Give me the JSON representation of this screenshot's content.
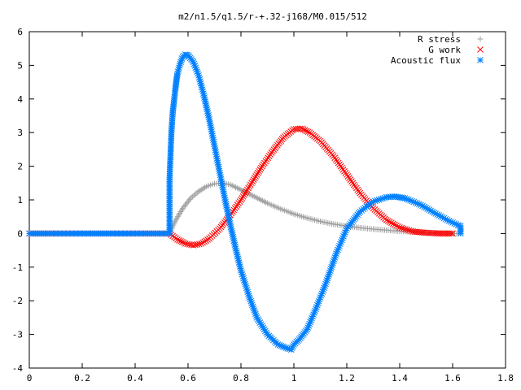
{
  "chart_data": {
    "type": "scatter",
    "title": "m2/n1.5/q1.5/r-+.32-j168/M0.015/512",
    "xlabel": "",
    "ylabel": "",
    "xlim": [
      0,
      1.8
    ],
    "ylim": [
      -4,
      6
    ],
    "x_ticks": [
      "0",
      "0.2",
      "0.4",
      "0.6",
      "0.8",
      "1",
      "1.2",
      "1.4",
      "1.6",
      "1.8"
    ],
    "y_ticks": [
      "-4",
      "-3",
      "-2",
      "-1",
      "0",
      "1",
      "2",
      "3",
      "4",
      "5",
      "6"
    ],
    "grid": false,
    "legend_position": "top-right",
    "series": [
      {
        "name": "R stress",
        "marker": "plus",
        "color": "#a0a0a0",
        "points": [
          [
            0.0,
            0
          ],
          [
            0.1,
            0
          ],
          [
            0.2,
            0
          ],
          [
            0.3,
            0
          ],
          [
            0.4,
            0
          ],
          [
            0.5,
            0
          ],
          [
            0.53,
            0
          ],
          [
            0.55,
            0.35
          ],
          [
            0.58,
            0.75
          ],
          [
            0.61,
            1.05
          ],
          [
            0.64,
            1.25
          ],
          [
            0.67,
            1.4
          ],
          [
            0.7,
            1.48
          ],
          [
            0.73,
            1.5
          ],
          [
            0.76,
            1.45
          ],
          [
            0.8,
            1.3
          ],
          [
            0.85,
            1.1
          ],
          [
            0.9,
            0.9
          ],
          [
            0.95,
            0.73
          ],
          [
            1.0,
            0.58
          ],
          [
            1.05,
            0.46
          ],
          [
            1.1,
            0.36
          ],
          [
            1.15,
            0.28
          ],
          [
            1.2,
            0.22
          ],
          [
            1.25,
            0.17
          ],
          [
            1.3,
            0.13
          ],
          [
            1.35,
            0.1
          ],
          [
            1.4,
            0.07
          ],
          [
            1.45,
            0.05
          ],
          [
            1.5,
            0.03
          ],
          [
            1.55,
            0.01
          ],
          [
            1.6,
            0
          ],
          [
            1.63,
            0
          ]
        ]
      },
      {
        "name": "G work",
        "marker": "cross",
        "color": "#ff0000",
        "points": [
          [
            0.0,
            0
          ],
          [
            0.1,
            0
          ],
          [
            0.2,
            0
          ],
          [
            0.3,
            0
          ],
          [
            0.4,
            0
          ],
          [
            0.5,
            0
          ],
          [
            0.53,
            0
          ],
          [
            0.56,
            -0.18
          ],
          [
            0.59,
            -0.3
          ],
          [
            0.62,
            -0.35
          ],
          [
            0.65,
            -0.3
          ],
          [
            0.68,
            -0.15
          ],
          [
            0.72,
            0.15
          ],
          [
            0.76,
            0.55
          ],
          [
            0.8,
            1.0
          ],
          [
            0.84,
            1.5
          ],
          [
            0.88,
            2.0
          ],
          [
            0.92,
            2.45
          ],
          [
            0.96,
            2.85
          ],
          [
            1.0,
            3.1
          ],
          [
            1.03,
            3.12
          ],
          [
            1.06,
            3.0
          ],
          [
            1.1,
            2.75
          ],
          [
            1.15,
            2.3
          ],
          [
            1.2,
            1.75
          ],
          [
            1.25,
            1.2
          ],
          [
            1.3,
            0.75
          ],
          [
            1.35,
            0.4
          ],
          [
            1.4,
            0.18
          ],
          [
            1.45,
            0.06
          ],
          [
            1.5,
            0.02
          ],
          [
            1.55,
            0
          ],
          [
            1.6,
            0
          ]
        ]
      },
      {
        "name": "Acoustic flux",
        "marker": "star",
        "color": "#0080ff",
        "points": [
          [
            0.0,
            0
          ],
          [
            0.1,
            0
          ],
          [
            0.2,
            0
          ],
          [
            0.3,
            0
          ],
          [
            0.4,
            0
          ],
          [
            0.5,
            0
          ],
          [
            0.53,
            0
          ],
          [
            0.53,
            1.6
          ],
          [
            0.537,
            3.0
          ],
          [
            0.542,
            3.6
          ],
          [
            0.548,
            4.0
          ],
          [
            0.552,
            4.3
          ],
          [
            0.556,
            4.55
          ],
          [
            0.56,
            4.75
          ],
          [
            0.57,
            5.05
          ],
          [
            0.58,
            5.25
          ],
          [
            0.59,
            5.32
          ],
          [
            0.6,
            5.3
          ],
          [
            0.62,
            5.1
          ],
          [
            0.64,
            4.7
          ],
          [
            0.66,
            4.1
          ],
          [
            0.68,
            3.4
          ],
          [
            0.7,
            2.6
          ],
          [
            0.72,
            1.8
          ],
          [
            0.74,
            1.0
          ],
          [
            0.76,
            0.25
          ],
          [
            0.78,
            -0.45
          ],
          [
            0.8,
            -1.1
          ],
          [
            0.83,
            -1.85
          ],
          [
            0.86,
            -2.5
          ],
          [
            0.9,
            -3.0
          ],
          [
            0.94,
            -3.3
          ],
          [
            0.97,
            -3.4
          ],
          [
            0.99,
            -3.45
          ],
          [
            1.0,
            -3.3
          ],
          [
            1.02,
            -3.15
          ],
          [
            1.05,
            -2.85
          ],
          [
            1.08,
            -2.3
          ],
          [
            1.12,
            -1.5
          ],
          [
            1.16,
            -0.6
          ],
          [
            1.2,
            0.15
          ],
          [
            1.25,
            0.65
          ],
          [
            1.3,
            0.95
          ],
          [
            1.35,
            1.08
          ],
          [
            1.38,
            1.1
          ],
          [
            1.42,
            1.05
          ],
          [
            1.48,
            0.85
          ],
          [
            1.53,
            0.62
          ],
          [
            1.58,
            0.4
          ],
          [
            1.62,
            0.25
          ],
          [
            1.63,
            0.22
          ],
          [
            1.63,
            0
          ]
        ]
      }
    ]
  }
}
